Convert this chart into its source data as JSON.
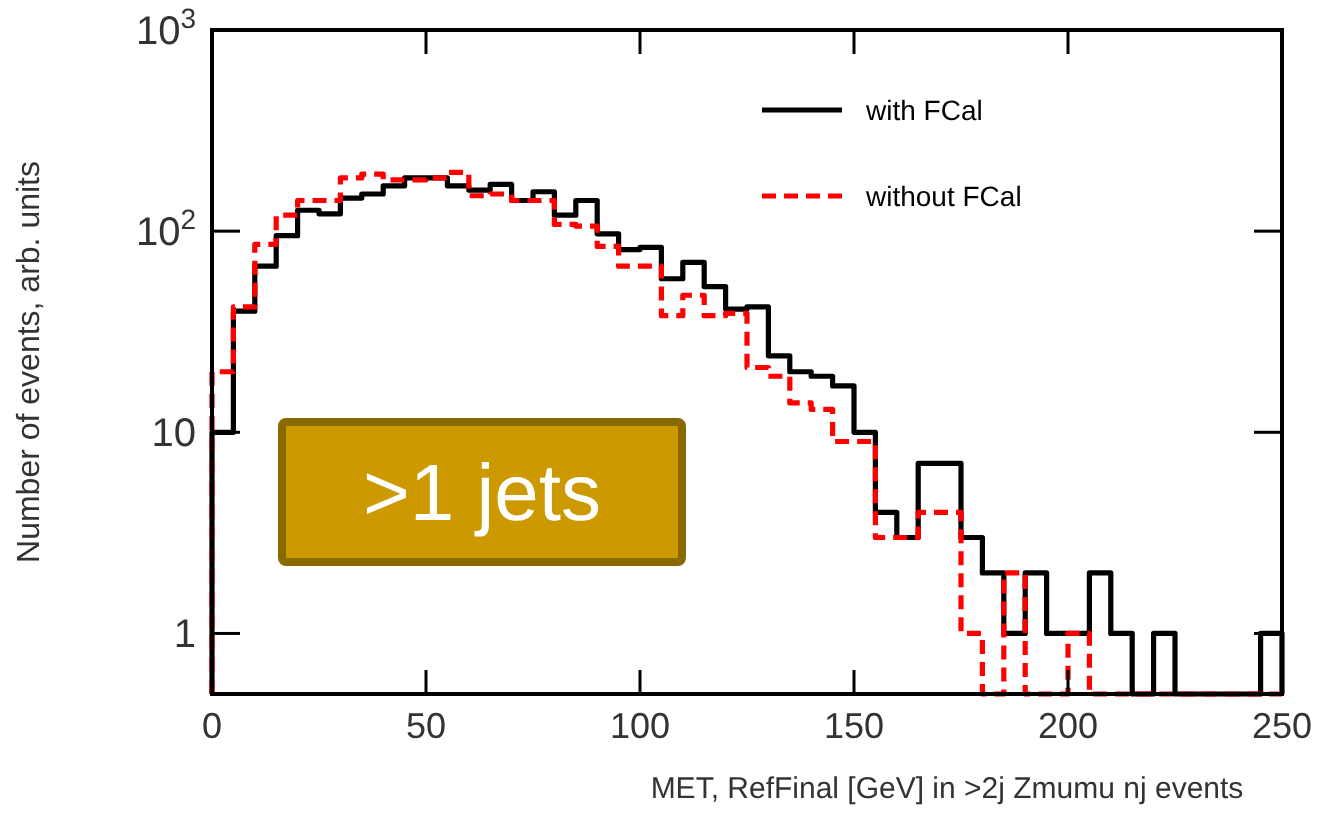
{
  "chart_data": {
    "type": "histogram",
    "xlabel": "MET, RefFinal [GeV] in >2j Zmumu nj events",
    "ylabel": "Number of events, arb. units",
    "bins": [
      0,
      5,
      10,
      15,
      20,
      25,
      30,
      35,
      40,
      45,
      50,
      55,
      60,
      65,
      70,
      75,
      80,
      85,
      90,
      95,
      100,
      105,
      110,
      115,
      120,
      125,
      130,
      135,
      140,
      145,
      150,
      155,
      160,
      165,
      170,
      175,
      180,
      185,
      190,
      195,
      200,
      205,
      210,
      215,
      220,
      225,
      230,
      235,
      240,
      245,
      250
    ],
    "series": [
      {
        "name": "with FCal",
        "color": "#000000",
        "line_style": "solid",
        "values": [
          10,
          40,
          67,
          95,
          127,
          122,
          146,
          153,
          168,
          184,
          184,
          168,
          160,
          171,
          142,
          157,
          120,
          142,
          97,
          81,
          83,
          58,
          70,
          53,
          41,
          42,
          24,
          20,
          19,
          17,
          10,
          4,
          3,
          7,
          7,
          3,
          2,
          1,
          2,
          1,
          1,
          2,
          1,
          null,
          1,
          null,
          null,
          null,
          null,
          1
        ]
      },
      {
        "name": "without FCal",
        "color": "#ff0000",
        "line_style": "dashed",
        "values": [
          20,
          42,
          86,
          120,
          142,
          142,
          184,
          192,
          180,
          180,
          184,
          196,
          150,
          153,
          142,
          142,
          108,
          106,
          84,
          67,
          67,
          38,
          48,
          38,
          39,
          21,
          19,
          14,
          13,
          9,
          9,
          3,
          3,
          4,
          4,
          1,
          null,
          2,
          null,
          null,
          1,
          null,
          null,
          null,
          null,
          null,
          null,
          null,
          null,
          null
        ]
      }
    ],
    "xlim": [
      0,
      250
    ],
    "xticks": [
      0,
      50,
      100,
      150,
      200,
      250
    ],
    "ylim": [
      0.5,
      1000
    ],
    "log": "y",
    "yticks": [
      1,
      10,
      {
        "value": 100,
        "label": "10$^{2}$"
      },
      {
        "value": 1000,
        "label": "10$^{3}$"
      }
    ],
    "legend": "top right",
    "annotations": [
      ">1 jets"
    ]
  }
}
